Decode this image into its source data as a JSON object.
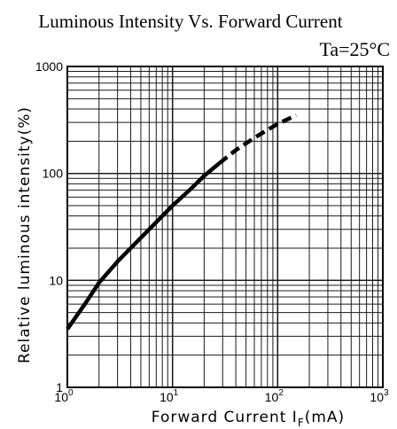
{
  "chart_data": {
    "type": "line",
    "title": "Luminous Intensity Vs. Forward Current",
    "condition": "Ta=25°C",
    "xlabel": {
      "main": "Forward Current I",
      "subscript": "F",
      "unit": "(mA)"
    },
    "ylabel": "Relative luminous intensity(%)",
    "x_scale": "log",
    "y_scale": "log",
    "xlim": [
      1,
      1000
    ],
    "ylim": [
      1,
      1000
    ],
    "x_ticks": [
      {
        "base": "10",
        "exp": "0"
      },
      {
        "base": "10",
        "exp": "1"
      },
      {
        "base": "10",
        "exp": "2"
      },
      {
        "base": "10",
        "exp": "3"
      }
    ],
    "y_ticks": [
      "1",
      "10",
      "100",
      "1000"
    ],
    "grid": true,
    "series": [
      {
        "style": "solid",
        "points": [
          {
            "x": 1,
            "y": 3.5
          },
          {
            "x": 1.5,
            "y": 6.2
          },
          {
            "x": 2,
            "y": 9.5
          },
          {
            "x": 3,
            "y": 15
          },
          {
            "x": 5,
            "y": 25
          },
          {
            "x": 7,
            "y": 35
          },
          {
            "x": 10,
            "y": 50
          },
          {
            "x": 15,
            "y": 72
          },
          {
            "x": 20,
            "y": 95
          },
          {
            "x": 28,
            "y": 125
          }
        ]
      },
      {
        "style": "dashed",
        "points": [
          {
            "x": 28,
            "y": 125
          },
          {
            "x": 40,
            "y": 165
          },
          {
            "x": 60,
            "y": 215
          },
          {
            "x": 80,
            "y": 255
          },
          {
            "x": 100,
            "y": 290
          },
          {
            "x": 150,
            "y": 350
          }
        ]
      }
    ]
  }
}
